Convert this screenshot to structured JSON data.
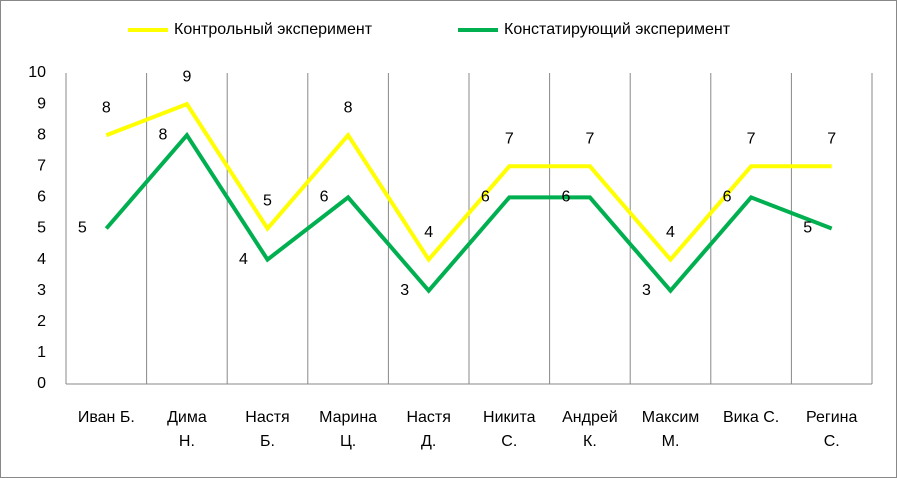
{
  "chart_data": {
    "type": "line",
    "categories": [
      "Иван Б.",
      "Дима Н.",
      "Настя Б.",
      "Марина Ц.",
      "Настя Д.",
      "Никита С.",
      "Андрей К.",
      "Максим М.",
      "Вика С.",
      "Регина С."
    ],
    "series": [
      {
        "name": "Контрольный эксперимент",
        "color": "#ffff00",
        "values": [
          8,
          9,
          5,
          8,
          4,
          7,
          7,
          4,
          7,
          7
        ]
      },
      {
        "name": "Констатирующий эксперимент",
        "color": "#00b050",
        "values": [
          5,
          8,
          4,
          6,
          3,
          6,
          6,
          3,
          6,
          5
        ]
      }
    ],
    "ylim": [
      0,
      10
    ],
    "yticks": [
      0,
      1,
      2,
      3,
      4,
      5,
      6,
      7,
      8,
      9,
      10
    ],
    "grid": true,
    "legend": "top"
  }
}
